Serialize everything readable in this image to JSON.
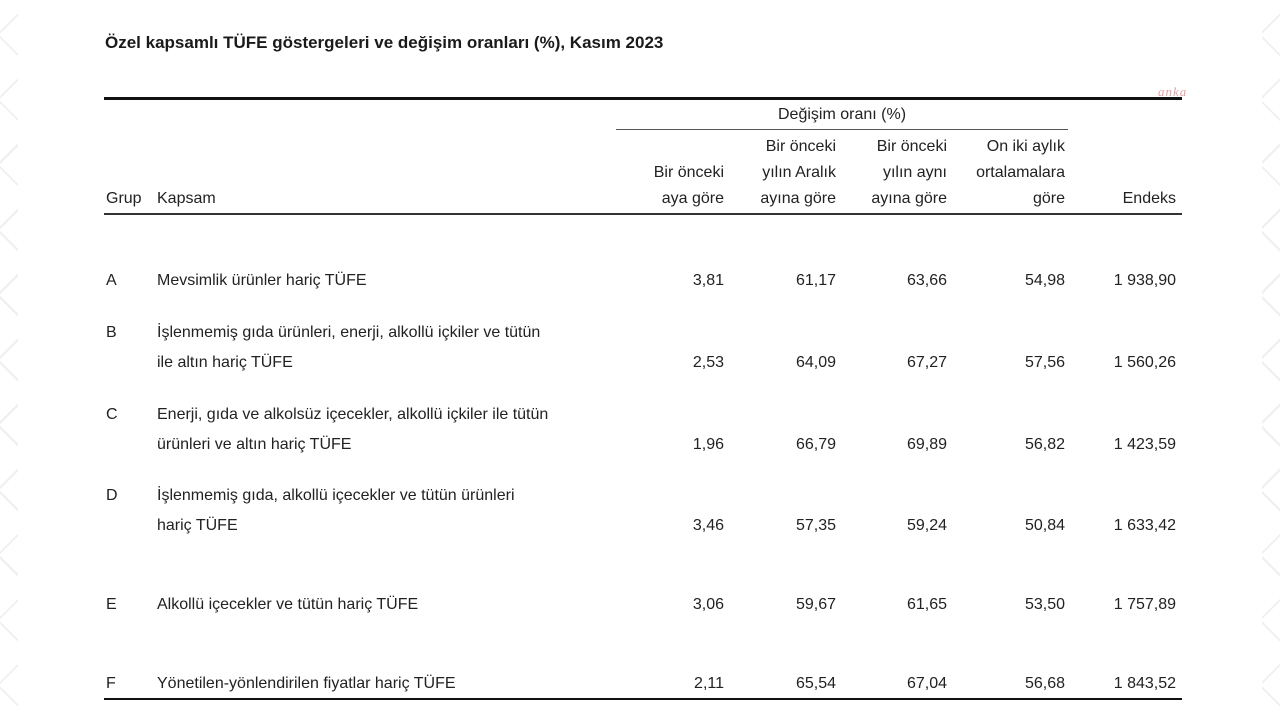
{
  "title": "Özel kapsamlı TÜFE göstergeleri ve değişim oranları (%), Kasım 2023",
  "watermark": "anka",
  "table": {
    "group_header": "Değişim oranı (%)",
    "columns": {
      "grup": "Grup",
      "kapsam": "Kapsam",
      "c1": [
        "Bir önceki",
        "aya göre"
      ],
      "c2": [
        "Bir önceki",
        "yılın Aralık",
        "ayına göre"
      ],
      "c3": [
        "Bir önceki",
        "yılın aynı",
        "ayına göre"
      ],
      "c4": [
        "On iki aylık",
        "ortalamalara",
        "göre"
      ],
      "endeks": "Endeks"
    },
    "rows": [
      {
        "grup": "A",
        "kapsam": [
          "Mevsimlik ürünler hariç TÜFE"
        ],
        "v1": "3,81",
        "v2": "61,17",
        "v3": "63,66",
        "v4": "54,98",
        "endeks": "1 938,90"
      },
      {
        "grup": "B",
        "kapsam": [
          "İşlenmemiş gıda ürünleri, enerji, alkollü içkiler ve tütün",
          "ile altın hariç TÜFE"
        ],
        "v1": "2,53",
        "v2": "64,09",
        "v3": "67,27",
        "v4": "57,56",
        "endeks": "1 560,26"
      },
      {
        "grup": "C",
        "kapsam": [
          "Enerji, gıda ve alkolsüz içecekler, alkollü içkiler ile tütün",
          "ürünleri ve altın hariç TÜFE"
        ],
        "v1": "1,96",
        "v2": "66,79",
        "v3": "69,89",
        "v4": "56,82",
        "endeks": "1 423,59"
      },
      {
        "grup": "D",
        "kapsam": [
          "İşlenmemiş gıda, alkollü içecekler ve tütün ürünleri",
          "hariç TÜFE"
        ],
        "v1": "3,46",
        "v2": "57,35",
        "v3": "59,24",
        "v4": "50,84",
        "endeks": "1 633,42"
      },
      {
        "grup": "E",
        "kapsam": [
          "Alkollü içecekler ve tütün hariç TÜFE"
        ],
        "v1": "3,06",
        "v2": "59,67",
        "v3": "61,65",
        "v4": "53,50",
        "endeks": "1 757,89"
      },
      {
        "grup": "F",
        "kapsam": [
          "Yönetilen-yönlendirilen fiyatlar hariç TÜFE"
        ],
        "v1": "2,11",
        "v2": "65,54",
        "v3": "67,04",
        "v4": "56,68",
        "endeks": "1 843,52"
      }
    ]
  }
}
